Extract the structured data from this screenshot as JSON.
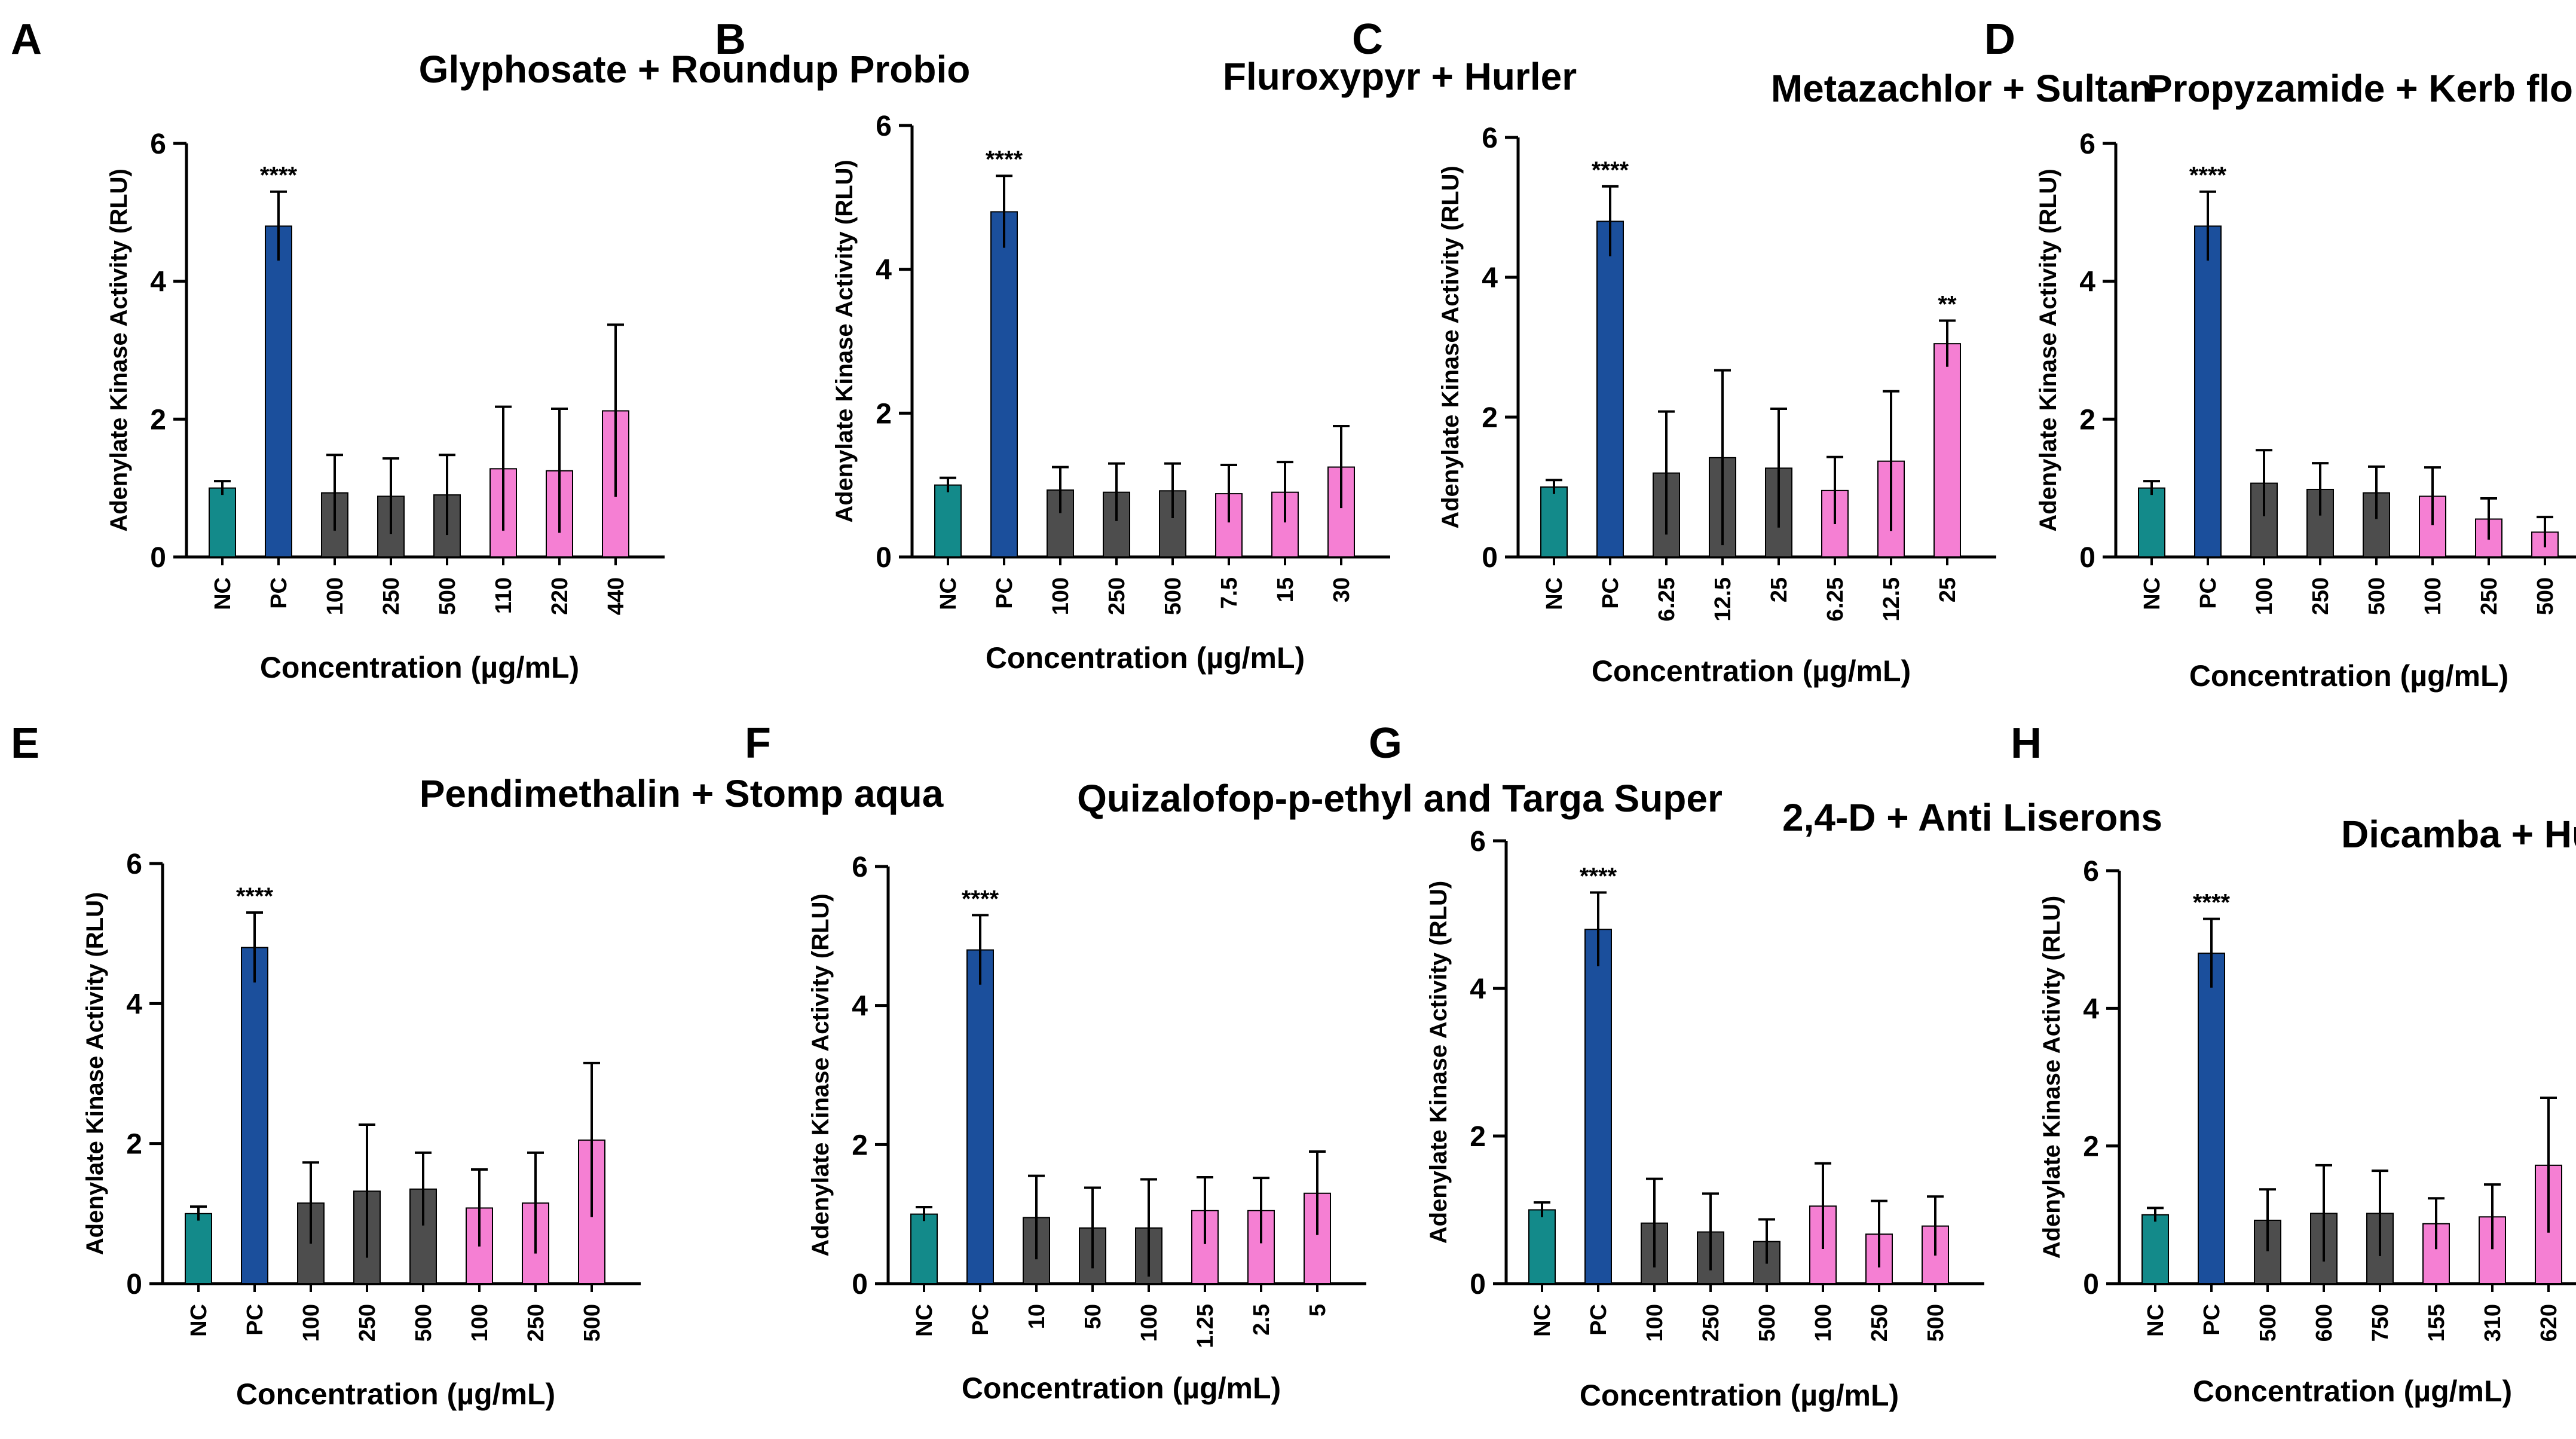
{
  "colors": {
    "nc": "#138a8a",
    "pc": "#1b4f9c",
    "active": "#4d4d4d",
    "formulation": "#f57fd3",
    "axis": "#000000",
    "error": "#000000"
  },
  "chart_data": [
    {
      "letter": "A",
      "type": "bar",
      "title": "Glyphosate + Roundup Probio",
      "ylabel": "Adenylate Kinase Activity (RLU)",
      "xlabel": "Concentration (µg/mL)",
      "ylim": [
        0,
        6
      ],
      "yticks": [
        "0",
        "2",
        "4",
        "6"
      ],
      "categories": [
        "NC",
        "PC",
        "100",
        "250",
        "500",
        "110",
        "220",
        "440"
      ],
      "groups": [
        "nc",
        "pc",
        "active",
        "active",
        "active",
        "formulation",
        "formulation",
        "formulation"
      ],
      "values": [
        1.0,
        4.8,
        0.93,
        0.88,
        0.9,
        1.28,
        1.25,
        2.12
      ],
      "errors": [
        0.1,
        0.5,
        0.55,
        0.55,
        0.58,
        0.9,
        0.9,
        1.25
      ],
      "significance": [
        "",
        "****",
        "",
        "",
        "",
        "",
        "",
        ""
      ]
    },
    {
      "letter": "B",
      "type": "bar",
      "title": "Fluroxypyr + Hurler",
      "ylabel": "Adenylate Kinase Activity (RLU)",
      "xlabel": "Concentration (µg/mL)",
      "ylim": [
        0,
        6
      ],
      "yticks": [
        "0",
        "2",
        "4",
        "6"
      ],
      "categories": [
        "NC",
        "PC",
        "100",
        "250",
        "500",
        "7.5",
        "15",
        "30"
      ],
      "groups": [
        "nc",
        "pc",
        "active",
        "active",
        "active",
        "formulation",
        "formulation",
        "formulation"
      ],
      "values": [
        1.0,
        4.8,
        0.93,
        0.9,
        0.92,
        0.88,
        0.9,
        1.25
      ],
      "errors": [
        0.1,
        0.5,
        0.32,
        0.4,
        0.38,
        0.4,
        0.42,
        0.57
      ],
      "significance": [
        "",
        "****",
        "",
        "",
        "",
        "",
        "",
        ""
      ]
    },
    {
      "letter": "C",
      "type": "bar",
      "title": "Metazachlor + Sultan",
      "ylabel": "Adenylate Kinase Activity (RLU)",
      "xlabel": "Concentration (µg/mL)",
      "ylim": [
        0,
        6
      ],
      "yticks": [
        "0",
        "2",
        "4",
        "6"
      ],
      "categories": [
        "NC",
        "PC",
        "6.25",
        "12.5",
        "25",
        "6.25",
        "12.5",
        "25"
      ],
      "groups": [
        "nc",
        "pc",
        "active",
        "active",
        "active",
        "formulation",
        "formulation",
        "formulation"
      ],
      "values": [
        1.0,
        4.8,
        1.2,
        1.42,
        1.27,
        0.95,
        1.37,
        3.05
      ],
      "errors": [
        0.1,
        0.5,
        0.88,
        1.25,
        0.85,
        0.48,
        1.0,
        0.33
      ],
      "significance": [
        "",
        "****",
        "",
        "",
        "",
        "",
        "",
        "**"
      ]
    },
    {
      "letter": "D",
      "type": "bar",
      "title": "Propyzamide + Kerb flo",
      "ylabel": "Adenylate Kinase Activity (RLU)",
      "xlabel": "Concentration (µg/mL)",
      "ylim": [
        0,
        6
      ],
      "yticks": [
        "0",
        "2",
        "4",
        "6"
      ],
      "categories": [
        "NC",
        "PC",
        "100",
        "250",
        "500",
        "100",
        "250",
        "500"
      ],
      "groups": [
        "nc",
        "pc",
        "active",
        "active",
        "active",
        "formulation",
        "formulation",
        "formulation"
      ],
      "values": [
        1.0,
        4.8,
        1.07,
        0.98,
        0.93,
        0.88,
        0.55,
        0.36
      ],
      "errors": [
        0.1,
        0.5,
        0.48,
        0.38,
        0.38,
        0.42,
        0.3,
        0.22
      ],
      "significance": [
        "",
        "****",
        "",
        "",
        "",
        "",
        "",
        ""
      ]
    },
    {
      "letter": "E",
      "type": "bar",
      "title": "Pendimethalin + Stomp aqua",
      "ylabel": "Adenylate Kinase Activity (RLU)",
      "xlabel": "Concentration (µg/mL)",
      "ylim": [
        0,
        6
      ],
      "yticks": [
        "0",
        "2",
        "4",
        "6"
      ],
      "categories": [
        "NC",
        "PC",
        "100",
        "250",
        "500",
        "100",
        "250",
        "500"
      ],
      "groups": [
        "nc",
        "pc",
        "active",
        "active",
        "active",
        "formulation",
        "formulation",
        "formulation"
      ],
      "values": [
        1.0,
        4.8,
        1.15,
        1.32,
        1.35,
        1.08,
        1.15,
        2.05
      ],
      "errors": [
        0.1,
        0.5,
        0.58,
        0.95,
        0.52,
        0.55,
        0.72,
        1.1
      ],
      "significance": [
        "",
        "****",
        "",
        "",
        "",
        "",
        "",
        ""
      ]
    },
    {
      "letter": "F",
      "type": "bar",
      "title": "Quizalofop-p-ethyl and Targa Super",
      "ylabel": "Adenylate Kinase Activity (RLU)",
      "xlabel": "Concentration (µg/mL)",
      "ylim": [
        0,
        6
      ],
      "yticks": [
        "0",
        "2",
        "4",
        "6"
      ],
      "categories": [
        "NC",
        "PC",
        "10",
        "50",
        "100",
        "1.25",
        "2.5",
        "5"
      ],
      "groups": [
        "nc",
        "pc",
        "active",
        "active",
        "active",
        "formulation",
        "formulation",
        "formulation"
      ],
      "values": [
        1.0,
        4.8,
        0.95,
        0.8,
        0.8,
        1.05,
        1.05,
        1.3
      ],
      "errors": [
        0.1,
        0.5,
        0.6,
        0.58,
        0.7,
        0.48,
        0.47,
        0.6
      ],
      "significance": [
        "",
        "****",
        "",
        "",
        "",
        "",
        "",
        ""
      ]
    },
    {
      "letter": "G",
      "type": "bar",
      "title": "2,4-D + Anti Liserons",
      "ylabel": "Adenylate Kinase Activity (RLU)",
      "xlabel": "Concentration (µg/mL)",
      "ylim": [
        0,
        6
      ],
      "yticks": [
        "0",
        "2",
        "4",
        "6"
      ],
      "categories": [
        "NC",
        "PC",
        "100",
        "250",
        "500",
        "100",
        "250",
        "500"
      ],
      "groups": [
        "nc",
        "pc",
        "active",
        "active",
        "active",
        "formulation",
        "formulation",
        "formulation"
      ],
      "values": [
        1.0,
        4.8,
        0.82,
        0.7,
        0.57,
        1.05,
        0.67,
        0.78
      ],
      "errors": [
        0.1,
        0.5,
        0.6,
        0.52,
        0.3,
        0.58,
        0.45,
        0.4
      ],
      "significance": [
        "",
        "****",
        "",
        "",
        "",
        "",
        "",
        ""
      ]
    },
    {
      "letter": "H",
      "type": "bar",
      "title": "Dicamba + Hunter",
      "ylabel": "Adenylate Kinase Activity (RLU)",
      "xlabel": "Concentration (µg/mL)",
      "ylim": [
        0,
        6
      ],
      "yticks": [
        "0",
        "2",
        "4",
        "6"
      ],
      "categories": [
        "NC",
        "PC",
        "500",
        "600",
        "750",
        "155",
        "310",
        "620"
      ],
      "groups": [
        "nc",
        "pc",
        "active",
        "active",
        "active",
        "formulation",
        "formulation",
        "formulation"
      ],
      "values": [
        1.0,
        4.8,
        0.92,
        1.02,
        1.02,
        0.87,
        0.97,
        1.72
      ],
      "errors": [
        0.1,
        0.5,
        0.45,
        0.7,
        0.62,
        0.37,
        0.47,
        0.98
      ],
      "significance": [
        "",
        "****",
        "",
        "",
        "",
        "",
        "",
        ""
      ]
    }
  ]
}
